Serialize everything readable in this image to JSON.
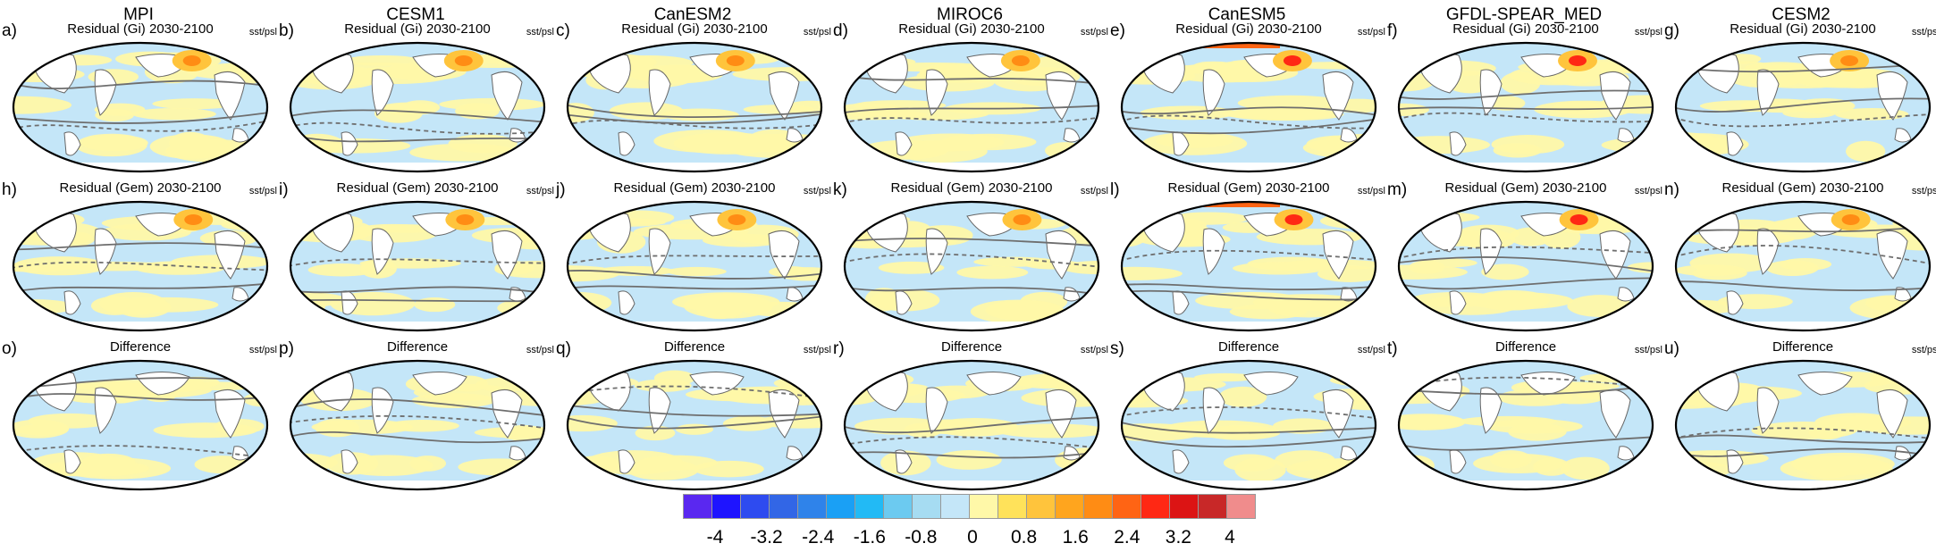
{
  "figure": {
    "models": [
      "MPI",
      "CESM1",
      "CanESM2",
      "MIROC6",
      "CanESM5",
      "GFDL-SPEAR_MED",
      "CESM2"
    ],
    "rows": [
      {
        "title": "Residual (Gi) 2030-2100",
        "letters": [
          "a)",
          "b)",
          "c)",
          "d)",
          "e)",
          "f)",
          "g)"
        ]
      },
      {
        "title": "Residual (Gem) 2030-2100",
        "letters": [
          "h)",
          "i)",
          "j)",
          "k)",
          "l)",
          "m)",
          "n)"
        ]
      },
      {
        "title": "Difference",
        "letters": [
          "o)",
          "p)",
          "q)",
          "r)",
          "s)",
          "t)",
          "u)"
        ]
      }
    ],
    "variable_label": "sst/psl"
  },
  "colorbar": {
    "colors": [
      "#5a28f0",
      "#1e14ff",
      "#2e4bf0",
      "#3266e6",
      "#2f83ea",
      "#1aa0f5",
      "#22baf5",
      "#6ccaf0",
      "#a6dcf2",
      "#c4e6f8",
      "#fff8a8",
      "#ffe25a",
      "#ffc43c",
      "#ffa51e",
      "#ff8c14",
      "#ff6414",
      "#ff2814",
      "#dc1414",
      "#c82828",
      "#f08c8c"
    ],
    "tick_labels": [
      "-4",
      "-3.2",
      "-2.4",
      "-1.6",
      "-0.8",
      "0",
      "0.8",
      "1.6",
      "2.4",
      "3.2",
      "4"
    ]
  }
}
